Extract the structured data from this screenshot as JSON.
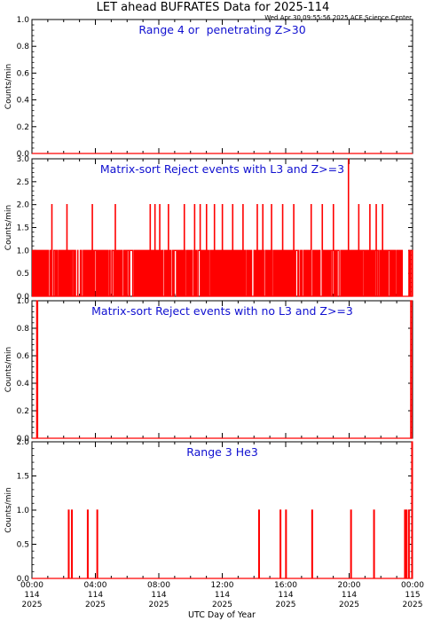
{
  "header": {
    "title": "LET ahead BUFRATES Data for 2025-114",
    "timestamp": "Wed Apr 30 09:55:56 2025 ACE Science Center"
  },
  "chart_data": {
    "type": "line",
    "xlabel": "UTC Day of Year",
    "x_ticks": [
      {
        "l1": "00:00",
        "l2": "114",
        "l3": "2025"
      },
      {
        "l1": "04:00",
        "l2": "114",
        "l3": "2025"
      },
      {
        "l1": "08:00",
        "l2": "114",
        "l3": "2025"
      },
      {
        "l1": "12:00",
        "l2": "114",
        "l3": "2025"
      },
      {
        "l1": "16:00",
        "l2": "114",
        "l3": "2025"
      },
      {
        "l1": "20:00",
        "l2": "114",
        "l3": "2025"
      },
      {
        "l1": "00:00",
        "l2": "115",
        "l3": "2025"
      }
    ],
    "xlim_hours": [
      0,
      24
    ],
    "line_color": "#ff0000",
    "title_color": "#1010d0",
    "panels": [
      {
        "title": "Range 4 or  penetrating Z>30",
        "ylabel": "Counts/min",
        "ylim": [
          0,
          1.0
        ],
        "yticks": [
          "0.0",
          "0.2",
          "0.4",
          "0.6",
          "0.8",
          "1.0"
        ],
        "ytick_values": [
          0,
          0.2,
          0.4,
          0.6,
          0.8,
          1.0
        ],
        "series": {
          "x_hours": [
            0,
            24
          ],
          "values": [
            0,
            0
          ]
        }
      },
      {
        "title": "Matrix-sort Reject events with L3 and Z>=3",
        "ylabel": "Counts/min",
        "ylim": [
          0,
          3.0
        ],
        "yticks": [
          "0.0",
          "0.5",
          "1.0",
          "1.5",
          "2.0",
          "2.5",
          "3.0"
        ],
        "ytick_values": [
          0,
          0.5,
          1.0,
          1.5,
          2.0,
          2.5,
          3.0
        ],
        "spikes_2": [
          1.25,
          2.2,
          3.8,
          5.25,
          7.45,
          7.75,
          8.05,
          8.6,
          9.6,
          10.25,
          10.6,
          11.0,
          11.5,
          12.0,
          12.65,
          13.3,
          14.2,
          14.55,
          15.1,
          15.8,
          16.5,
          17.6,
          18.3,
          19.0,
          20.6,
          21.3,
          21.7,
          22.1
        ],
        "spikes_3": [
          19.95
        ],
        "series_note": "dense background of 0/1 counts per minute across the day"
      },
      {
        "title": "Matrix-sort Reject events with no L3 and Z>=3",
        "ylabel": "Counts/min",
        "ylim": [
          0,
          1.0
        ],
        "yticks": [
          "0.0",
          "0.2",
          "0.4",
          "0.6",
          "0.8",
          "1.0"
        ],
        "ytick_values": [
          0,
          0.2,
          0.4,
          0.6,
          0.8,
          1.0
        ],
        "series": {
          "x_hours": [
            0.3,
            0.35,
            23.9,
            23.95
          ],
          "values": [
            1,
            1,
            1,
            1
          ]
        }
      },
      {
        "title": "Range 3 He3",
        "ylabel": "Counts/min",
        "ylim": [
          0,
          2.0
        ],
        "yticks": [
          "0.0",
          "0.5",
          "1.0",
          "1.5",
          "2.0"
        ],
        "ytick_values": [
          0,
          0.5,
          1.0,
          1.5,
          2.0
        ],
        "spikes_1": [
          2.3,
          2.5,
          3.5,
          4.1,
          14.3,
          15.65,
          16.0,
          17.65,
          20.1,
          21.55,
          23.5,
          23.6,
          23.75
        ],
        "spikes_2": [
          23.95
        ]
      }
    ]
  }
}
